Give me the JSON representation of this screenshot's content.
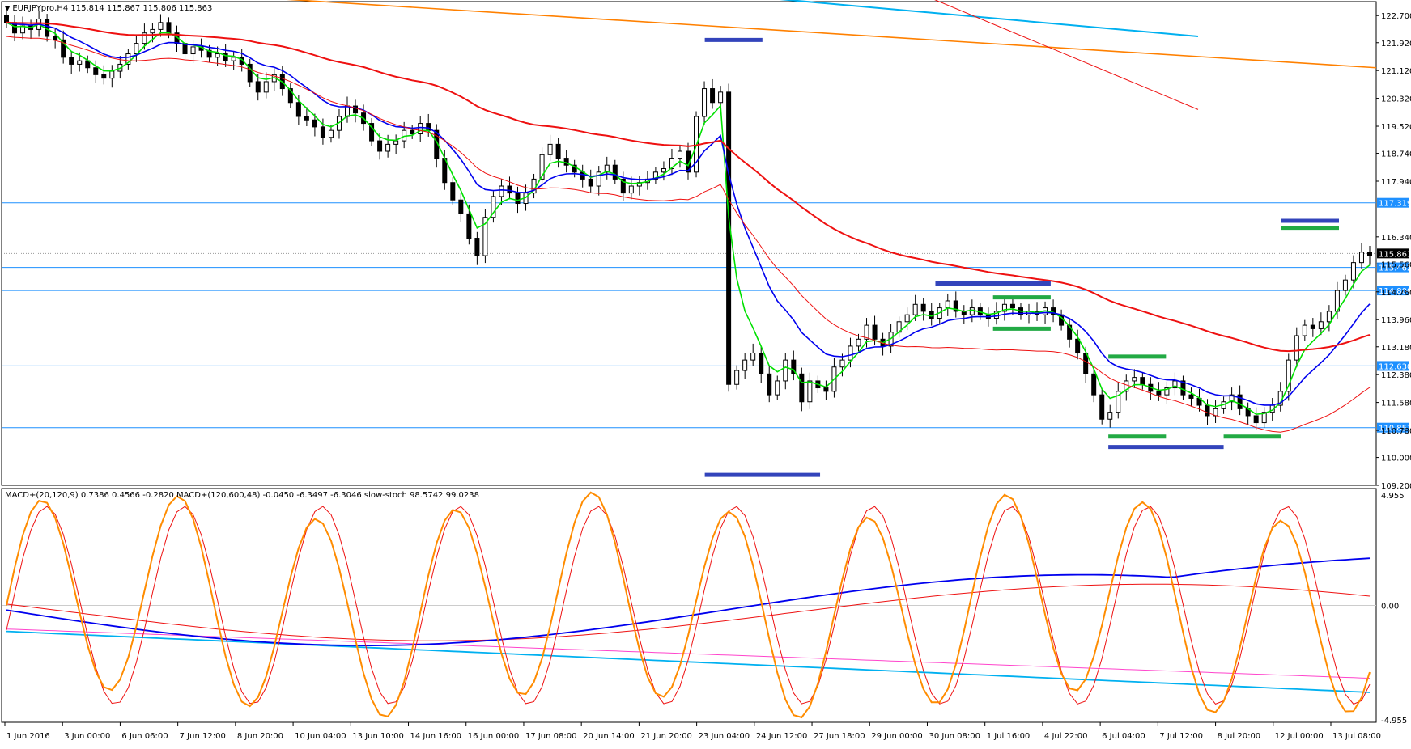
{
  "header": {
    "main_title": "EURJPYpro,H4  115.814 115.867 115.806 115.863",
    "sub_title": "MACD+(20,120,9) 0.7386 0.4566 -0.2820  MACD+(120,600,48) -0.0450 -6.3497 -6.3046  slow-stoch 98.5742 99.0238"
  },
  "chart_data": [
    {
      "type": "candlestick",
      "symbol": "EURJPYpro",
      "timeframe": "H4",
      "ohlc_last": {
        "open": 115.814,
        "high": 115.867,
        "low": 115.806,
        "close": 115.863
      },
      "ylim": [
        109.2,
        123.1
      ],
      "y_ticks": [
        122.7,
        121.92,
        121.12,
        120.32,
        119.52,
        118.74,
        117.94,
        116.34,
        115.56,
        114.76,
        113.96,
        113.18,
        112.38,
        111.58,
        110.78,
        110.0,
        109.2
      ],
      "y_tick_labels": [
        "122.700",
        "121.920",
        "121.120",
        "120.320",
        "119.520",
        "118.740",
        "117.940",
        "116.340",
        "115.560",
        "114.760",
        "113.960",
        "113.180",
        "112.380",
        "111.580",
        "110.780",
        "110.000",
        "109.200"
      ],
      "horizontal_levels": [
        {
          "label": "117.319",
          "value": 117.319
        },
        {
          "label": "115.462",
          "value": 115.462
        },
        {
          "label": "114.800",
          "value": 114.8
        },
        {
          "label": "112.630",
          "value": 112.63
        },
        {
          "label": "110.857",
          "value": 110.857
        }
      ],
      "current_price": {
        "label": "115.863",
        "value": 115.863
      },
      "x_labels": [
        "1 Jun 2016",
        "3 Jun 00:00",
        "6 Jun 06:00",
        "7 Jun 12:00",
        "8 Jun 20:00",
        "10 Jun 04:00",
        "13 Jun 10:00",
        "14 Jun 16:00",
        "16 Jun 00:00",
        "17 Jun 08:00",
        "20 Jun 14:00",
        "21 Jun 20:00",
        "23 Jun 04:00",
        "24 Jun 12:00",
        "27 Jun 18:00",
        "29 Jun 00:00",
        "30 Jun 08:00",
        "1 Jul 16:00",
        "4 Jul 22:00",
        "6 Jul 04:00",
        "7 Jul 12:00",
        "8 Jul 20:00",
        "12 Jul 00:00",
        "13 Jul 08:00"
      ],
      "bars": 204,
      "closes": [
        122.5,
        122.2,
        122.4,
        122.3,
        122.6,
        122.1,
        122.0,
        121.5,
        121.3,
        121.4,
        121.2,
        121.0,
        120.9,
        121.1,
        121.3,
        121.6,
        121.9,
        122.2,
        122.3,
        122.5,
        122.2,
        121.9,
        121.6,
        121.8,
        121.7,
        121.5,
        121.6,
        121.4,
        121.5,
        121.3,
        120.8,
        120.5,
        120.8,
        121.0,
        120.6,
        120.2,
        119.8,
        119.7,
        119.5,
        119.2,
        119.4,
        119.8,
        120.1,
        119.9,
        119.6,
        119.1,
        118.8,
        119.0,
        119.1,
        119.4,
        119.3,
        119.6,
        119.4,
        118.6,
        117.9,
        117.4,
        117.0,
        116.3,
        115.8,
        116.9,
        117.5,
        117.8,
        117.6,
        117.3,
        117.6,
        118.0,
        118.7,
        119.0,
        118.6,
        118.4,
        118.2,
        118.0,
        117.8,
        118.2,
        118.4,
        118.0,
        117.6,
        117.8,
        117.9,
        118.0,
        118.2,
        118.3,
        118.6,
        118.8,
        118.2,
        119.8,
        120.6,
        120.2,
        120.5,
        112.1,
        112.5,
        112.8,
        113.0,
        112.4,
        111.8,
        112.2,
        112.8,
        112.4,
        111.6,
        112.2,
        112.0,
        111.9,
        112.6,
        112.8,
        113.2,
        113.4,
        113.8,
        113.4,
        113.2,
        113.6,
        113.9,
        114.1,
        114.4,
        114.2,
        114.0,
        114.3,
        114.5,
        114.2,
        114.1,
        114.3,
        114.1,
        114.0,
        114.2,
        114.4,
        114.3,
        114.1,
        114.2,
        114.1,
        114.3,
        114.1,
        113.8,
        113.4,
        113.0,
        112.4,
        111.8,
        111.1,
        111.3,
        111.9,
        112.2,
        112.3,
        112.1,
        111.9,
        111.8,
        112.0,
        112.2,
        111.8,
        111.7,
        111.5,
        111.2,
        111.4,
        111.6,
        111.8,
        111.4,
        111.2,
        111.0,
        111.3,
        111.5,
        111.9,
        112.8,
        113.5,
        113.8,
        113.7,
        113.9,
        114.2,
        114.8,
        115.1,
        115.6,
        115.9,
        115.8
      ],
      "series": [
        {
          "name": "",
          "color": "#00e000"
        },
        {
          "name": "",
          "color": "#0000ee"
        },
        {
          "name": "",
          "color": "#ee1111"
        },
        {
          "name": "",
          "color": "#ff8000"
        },
        {
          "name": "",
          "color": "#00b0f0"
        }
      ],
      "annotations": [
        {
          "type": "segment",
          "color": "#3344bb",
          "y": 122.0,
          "x_from": "23 Jun 04:00",
          "x_to": "24 Jun 12:00"
        },
        {
          "type": "segment",
          "color": "#3344bb",
          "y": 109.5,
          "x_from": "23 Jun 04:00",
          "x_to": "27 Jun 18:00"
        },
        {
          "type": "segment",
          "color": "#3344bb",
          "y": 115.0,
          "x_from": "30 Jun 08:00",
          "x_to": "4 Jul 22:00"
        },
        {
          "type": "segment",
          "color": "#3344bb",
          "y": 110.3,
          "x_from": "6 Jul 04:00",
          "x_to": "8 Jul 20:00"
        },
        {
          "type": "segment",
          "color": "#3344bb",
          "y": 116.8,
          "x_from": "12 Jul 00:00",
          "x_to": "13 Jul 08:00"
        },
        {
          "type": "segment",
          "color": "#22aa44",
          "y": 114.6,
          "x_from": "1 Jul 16:00",
          "x_to": "4 Jul 22:00"
        },
        {
          "type": "segment",
          "color": "#22aa44",
          "y": 113.7,
          "x_from": "1 Jul 16:00",
          "x_to": "4 Jul 22:00"
        },
        {
          "type": "segment",
          "color": "#22aa44",
          "y": 112.9,
          "x_from": "6 Jul 04:00",
          "x_to": "7 Jul 12:00"
        },
        {
          "type": "segment",
          "color": "#22aa44",
          "y": 110.6,
          "x_from": "6 Jul 04:00",
          "x_to": "7 Jul 12:00"
        },
        {
          "type": "segment",
          "color": "#22aa44",
          "y": 110.6,
          "x_from": "8 Jul 20:00",
          "x_to": "12 Jul 00:00"
        },
        {
          "type": "segment",
          "color": "#22aa44",
          "y": 116.6,
          "x_from": "12 Jul 00:00",
          "x_to": "13 Jul 08:00"
        }
      ]
    },
    {
      "type": "line",
      "ylim": [
        -4.955,
        4.955
      ],
      "y_tick_labels": [
        "4.955",
        "0.00",
        "-4.955"
      ],
      "series": [
        {
          "name": "",
          "color": "#ff8c00"
        },
        {
          "name": "",
          "color": "#ee1111"
        },
        {
          "name": "",
          "color": "#0000ee"
        },
        {
          "name": "",
          "color": "#00b0f0"
        },
        {
          "name": "",
          "color": "#ff44cc"
        }
      ]
    }
  ]
}
